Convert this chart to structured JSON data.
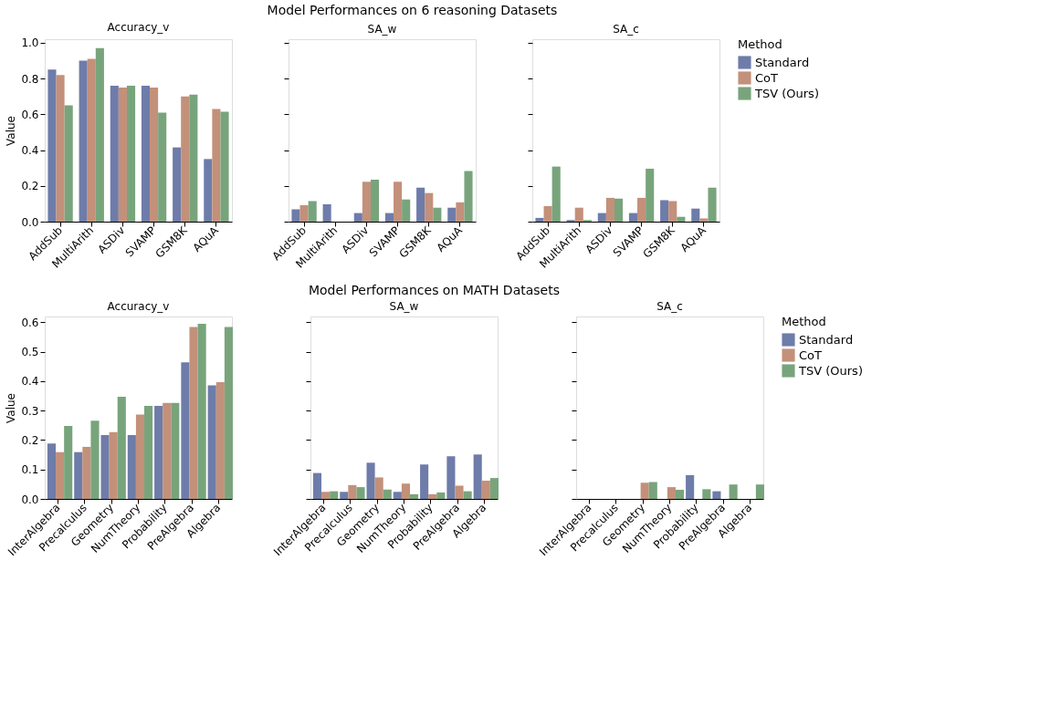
{
  "chart_data": [
    {
      "type": "bar",
      "annotations": [
        "Model Performances on 6 reasoning Datasets"
      ],
      "title": "Accuracy_v",
      "ylabel": "Value",
      "categories": [
        "AddSub",
        "MultiArith",
        "ASDiv",
        "SVAMP",
        "GSM8K",
        "AQuA"
      ],
      "series": [
        {
          "color": "#6e7ca9",
          "values": [
            0.85,
            0.9,
            0.76,
            0.76,
            0.415,
            0.35
          ]
        },
        {
          "color": "#c3907a",
          "values": [
            0.82,
            0.91,
            0.75,
            0.75,
            0.7,
            0.63
          ]
        },
        {
          "color": "#78a47c",
          "values": [
            0.65,
            0.97,
            0.76,
            0.61,
            0.71,
            0.615
          ]
        }
      ],
      "ylim": [
        0,
        1.02
      ],
      "yticks": [
        {
          "value": 0,
          "label": "0.0"
        },
        {
          "value": 0.2,
          "label": "0.2"
        },
        {
          "value": 0.4,
          "label": "0.4"
        },
        {
          "value": 0.6,
          "label": "0.6"
        },
        {
          "value": 0.8,
          "label": "0.8"
        },
        {
          "value": 1,
          "label": "1.0"
        }
      ],
      "grid": false,
      "legend": false
    },
    {
      "type": "bar",
      "title": "SA_w",
      "categories": [
        "AddSub",
        "MultiArith",
        "ASDiv",
        "SVAMP",
        "GSM8K",
        "AQuA"
      ],
      "series": [
        {
          "color": "#6e7ca9",
          "values": [
            0.069,
            0.097,
            0.048,
            0.048,
            0.19,
            0.078
          ]
        },
        {
          "color": "#c3907a",
          "values": [
            0.092,
            0,
            0.223,
            0.223,
            0.16,
            0.108
          ]
        },
        {
          "color": "#78a47c",
          "values": [
            0.115,
            0,
            0.235,
            0.124,
            0.078,
            0.283
          ]
        }
      ],
      "ylim": [
        0,
        1.02
      ],
      "yticks": [
        {
          "value": 0,
          "label": null
        },
        {
          "value": 0.2,
          "label": null
        },
        {
          "value": 0.4,
          "label": null
        },
        {
          "value": 0.6,
          "label": null
        },
        {
          "value": 0.8,
          "label": null
        },
        {
          "value": 1,
          "label": null
        }
      ],
      "tick_labels": "x",
      "grid": false,
      "legend": false
    },
    {
      "type": "bar",
      "title": "SA_c",
      "legend_title": "Method",
      "categories": [
        "AddSub",
        "MultiArith",
        "ASDiv",
        "SVAMP",
        "GSM8K",
        "AQuA"
      ],
      "series": [
        {
          "name": "Standard",
          "color": "#6e7ca9",
          "values": [
            0.021,
            0.009,
            0.048,
            0.048,
            0.12,
            0.073
          ]
        },
        {
          "name": "CoT",
          "color": "#c3907a",
          "values": [
            0.087,
            0.078,
            0.133,
            0.133,
            0.115,
            0.018
          ]
        },
        {
          "name": "TSV (Ours)",
          "color": "#78a47c",
          "values": [
            0.308,
            0.009,
            0.129,
            0.296,
            0.027,
            0.19
          ]
        }
      ],
      "ylim": [
        0,
        1.02
      ],
      "yticks": [
        {
          "value": 0,
          "label": null
        },
        {
          "value": 0.2,
          "label": null
        },
        {
          "value": 0.4,
          "label": null
        },
        {
          "value": 0.6,
          "label": null
        },
        {
          "value": 0.8,
          "label": null
        },
        {
          "value": 1,
          "label": null
        }
      ],
      "tick_labels": "x",
      "grid": false,
      "legend": "right"
    },
    {
      "type": "bar",
      "annotations": [
        "Model Performances on MATH Datasets"
      ],
      "title": "Accuracy_v",
      "ylabel": "Value",
      "categories": [
        "InterAlgebra",
        "Precalculus",
        "Geometry",
        "NumTheory",
        "Probability",
        "PreAlgebra",
        "Algebra"
      ],
      "series": [
        {
          "color": "#6e7ca9",
          "values": [
            0.188,
            0.159,
            0.217,
            0.217,
            0.316,
            0.464,
            0.386
          ]
        },
        {
          "color": "#c3907a",
          "values": [
            0.159,
            0.177,
            0.227,
            0.287,
            0.326,
            0.584,
            0.397
          ]
        },
        {
          "color": "#78a47c",
          "values": [
            0.248,
            0.266,
            0.347,
            0.316,
            0.326,
            0.595,
            0.584
          ]
        }
      ],
      "ylim": [
        0,
        0.62
      ],
      "yticks": [
        {
          "value": 0,
          "label": "0.0"
        },
        {
          "value": 0.1,
          "label": "0.1"
        },
        {
          "value": 0.2,
          "label": "0.2"
        },
        {
          "value": 0.3,
          "label": "0.3"
        },
        {
          "value": 0.4,
          "label": "0.4"
        },
        {
          "value": 0.5,
          "label": "0.5"
        },
        {
          "value": 0.6,
          "label": "0.6"
        }
      ],
      "grid": false,
      "legend": false
    },
    {
      "type": "bar",
      "title": "SA_w",
      "categories": [
        "InterAlgebra",
        "Precalculus",
        "Geometry",
        "NumTheory",
        "Probability",
        "PreAlgebra",
        "Algebra"
      ],
      "series": [
        {
          "color": "#6e7ca9",
          "values": [
            0.088,
            0.024,
            0.123,
            0.024,
            0.117,
            0.145,
            0.151
          ]
        },
        {
          "color": "#c3907a",
          "values": [
            0.024,
            0.047,
            0.073,
            0.052,
            0.016,
            0.045,
            0.062
          ]
        },
        {
          "color": "#78a47c",
          "values": [
            0.026,
            0.04,
            0.032,
            0.016,
            0.022,
            0.026,
            0.071
          ]
        }
      ],
      "ylim": [
        0,
        0.62
      ],
      "yticks": [
        {
          "value": 0,
          "label": null
        },
        {
          "value": 0.1,
          "label": null
        },
        {
          "value": 0.2,
          "label": null
        },
        {
          "value": 0.3,
          "label": null
        },
        {
          "value": 0.4,
          "label": null
        },
        {
          "value": 0.5,
          "label": null
        },
        {
          "value": 0.6,
          "label": null
        }
      ],
      "tick_labels": "x",
      "grid": false,
      "legend": false
    },
    {
      "type": "bar",
      "title": "SA_c",
      "legend_title": "Method",
      "categories": [
        "InterAlgebra",
        "Precalculus",
        "Geometry",
        "NumTheory",
        "Probability",
        "PreAlgebra",
        "Algebra"
      ],
      "series": [
        {
          "name": "Standard",
          "color": "#6e7ca9",
          "values": [
            0,
            0,
            0,
            0,
            0.081,
            0.026,
            0
          ]
        },
        {
          "name": "CoT",
          "color": "#c3907a",
          "values": [
            0,
            0,
            0.055,
            0.04,
            0,
            0,
            0
          ]
        },
        {
          "name": "TSV (Ours)",
          "color": "#78a47c",
          "values": [
            0,
            0,
            0.057,
            0.031,
            0.033,
            0.049,
            0.049
          ]
        }
      ],
      "ylim": [
        0,
        0.62
      ],
      "yticks": [
        {
          "value": 0,
          "label": null
        },
        {
          "value": 0.1,
          "label": null
        },
        {
          "value": 0.2,
          "label": null
        },
        {
          "value": 0.3,
          "label": null
        },
        {
          "value": 0.4,
          "label": null
        },
        {
          "value": 0.5,
          "label": null
        },
        {
          "value": 0.6,
          "label": null
        }
      ],
      "tick_labels": "x",
      "grid": false,
      "legend": "right"
    }
  ]
}
